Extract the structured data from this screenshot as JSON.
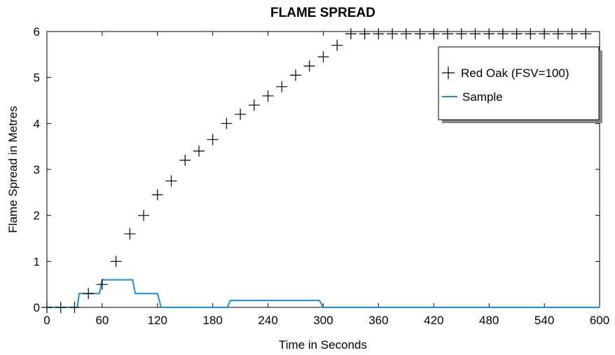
{
  "chart_data": {
    "type": "line",
    "title": "FLAME SPREAD",
    "xlabel": "Time in Seconds",
    "ylabel": "Flame Spread in Metres",
    "xlim": [
      0,
      600
    ],
    "ylim": [
      0,
      6
    ],
    "xticks": [
      0,
      60,
      120,
      180,
      240,
      300,
      360,
      420,
      480,
      540,
      600
    ],
    "yticks": [
      0,
      1,
      2,
      3,
      4,
      5,
      6
    ],
    "grid": false,
    "legend_position": "top-right",
    "series": [
      {
        "name": "Red Oak (FSV=100)",
        "style": "markers",
        "marker": "plus",
        "color": "#000000",
        "x": [
          0,
          15,
          30,
          45,
          60,
          75,
          90,
          105,
          120,
          135,
          150,
          165,
          180,
          195,
          210,
          225,
          240,
          255,
          270,
          285,
          300,
          315,
          330,
          345,
          360,
          375,
          390,
          405,
          420,
          435,
          450,
          465,
          480,
          495,
          510,
          525,
          540,
          555,
          570,
          585
        ],
        "y": [
          0,
          0,
          0,
          0.3,
          0.5,
          1.0,
          1.6,
          2.0,
          2.45,
          2.75,
          3.2,
          3.4,
          3.65,
          4.0,
          4.2,
          4.4,
          4.6,
          4.8,
          5.05,
          5.25,
          5.45,
          5.7,
          5.95,
          5.95,
          5.95,
          5.95,
          5.95,
          5.95,
          5.95,
          5.95,
          5.95,
          5.95,
          5.95,
          5.95,
          5.95,
          5.95,
          5.95,
          5.95,
          5.95,
          5.95
        ]
      },
      {
        "name": "Sample",
        "style": "step-line",
        "color": "#1a8fd6",
        "x": [
          0,
          33,
          35,
          57,
          60,
          93,
          96,
          120,
          124,
          196,
          199,
          296,
          300,
          600
        ],
        "y": [
          0,
          0,
          0.3,
          0.3,
          0.6,
          0.6,
          0.3,
          0.3,
          0,
          0,
          0.15,
          0.15,
          0,
          0
        ]
      }
    ]
  }
}
